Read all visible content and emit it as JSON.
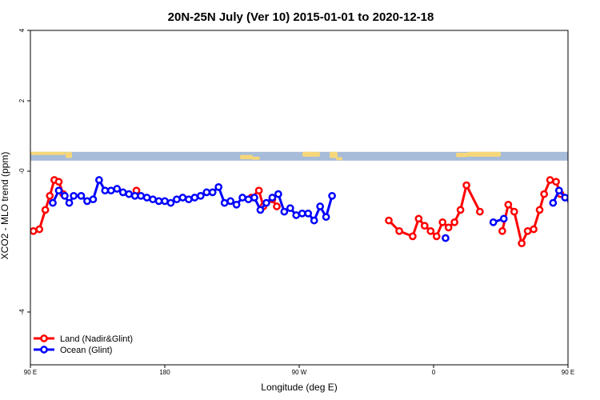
{
  "chart_data": {
    "type": "line",
    "title": "20N-25N July (Ver 10)   2015-01-01 to 2020-12-18",
    "xlabel": "Longitude (deg E)",
    "ylabel": "XCO2 - MLO trend (ppm)",
    "xlim": [
      90,
      450
    ],
    "ylim": [
      -5.5,
      4
    ],
    "xticks": [
      {
        "value": 90,
        "label": "90 E"
      },
      {
        "value": 180,
        "label": "180"
      },
      {
        "value": 270,
        "label": "90 W"
      },
      {
        "value": 360,
        "label": "0"
      },
      {
        "value": 450,
        "label": "90 E"
      },
      {
        "value": 540,
        "label": "180"
      }
    ],
    "yticks": [
      {
        "value": 4,
        "label": "4"
      },
      {
        "value": 2,
        "label": "2"
      },
      {
        "value": 0,
        "label": "-0"
      },
      {
        "value": -4,
        "label": "-4"
      }
    ],
    "legend_position": "bottom-left",
    "map_strip": {
      "ymin": 0.3,
      "ymax": 0.55,
      "ocean_color": "#a6bcd9",
      "land_color": "#f5d77a"
    },
    "series": [
      {
        "name": "Land (Nadir&Glint)",
        "color": "#ff0000",
        "points": [
          [
            92,
            -1.7
          ],
          [
            96,
            -1.65
          ],
          [
            100,
            -1.1
          ],
          [
            103,
            -0.7
          ],
          [
            106,
            -0.25
          ],
          [
            109,
            -0.3
          ],
          [
            112,
            -0.65
          ],
          [
            161,
            -0.55
          ],
          [
            238,
            -0.75
          ],
          [
            243,
            -0.55
          ],
          [
            246,
            -1.0
          ],
          [
            252,
            -0.8
          ],
          [
            255,
            -1.0
          ],
          [
            330,
            -1.4
          ],
          [
            337,
            -1.7
          ],
          [
            346,
            -1.85
          ],
          [
            350,
            -1.35
          ],
          [
            354,
            -1.55
          ],
          [
            358,
            -1.7
          ],
          [
            362,
            -1.85
          ],
          [
            366,
            -1.45
          ],
          [
            370,
            -1.6
          ],
          [
            374,
            -1.45
          ],
          [
            378,
            -1.1
          ],
          [
            382,
            -0.4
          ],
          [
            391,
            -1.15
          ],
          [
            406,
            -1.7
          ],
          [
            410,
            -0.95
          ],
          [
            414,
            -1.15
          ],
          [
            419,
            -2.05
          ],
          [
            423,
            -1.7
          ],
          [
            427,
            -1.65
          ],
          [
            431,
            -1.1
          ],
          [
            434,
            -0.65
          ],
          [
            438,
            -0.25
          ],
          [
            442,
            -0.3
          ],
          [
            445,
            -0.65
          ]
        ]
      },
      {
        "name": "Ocean (Glint)",
        "color": "#0000ff",
        "points": [
          [
            105,
            -0.9
          ],
          [
            109,
            -0.55
          ],
          [
            113,
            -0.7
          ],
          [
            116,
            -0.9
          ],
          [
            119,
            -0.7
          ],
          [
            124,
            -0.7
          ],
          [
            128,
            -0.85
          ],
          [
            132,
            -0.8
          ],
          [
            136,
            -0.25
          ],
          [
            140,
            -0.55
          ],
          [
            144,
            -0.55
          ],
          [
            148,
            -0.5
          ],
          [
            152,
            -0.6
          ],
          [
            156,
            -0.65
          ],
          [
            160,
            -0.7
          ],
          [
            164,
            -0.7
          ],
          [
            168,
            -0.75
          ],
          [
            172,
            -0.8
          ],
          [
            176,
            -0.85
          ],
          [
            180,
            -0.85
          ],
          [
            184,
            -0.9
          ],
          [
            188,
            -0.8
          ],
          [
            192,
            -0.75
          ],
          [
            196,
            -0.8
          ],
          [
            200,
            -0.75
          ],
          [
            204,
            -0.7
          ],
          [
            208,
            -0.6
          ],
          [
            212,
            -0.6
          ],
          [
            216,
            -0.45
          ],
          [
            220,
            -0.9
          ],
          [
            224,
            -0.85
          ],
          [
            228,
            -0.95
          ],
          [
            232,
            -0.75
          ],
          [
            236,
            -0.8
          ],
          [
            240,
            -0.75
          ],
          [
            244,
            -1.1
          ],
          [
            248,
            -0.9
          ],
          [
            252,
            -0.75
          ],
          [
            256,
            -0.65
          ],
          [
            260,
            -1.15
          ],
          [
            264,
            -1.05
          ],
          [
            268,
            -1.25
          ],
          [
            272,
            -1.2
          ],
          [
            276,
            -1.2
          ],
          [
            280,
            -1.4
          ],
          [
            284,
            -1.0
          ],
          [
            288,
            -1.3
          ],
          [
            292,
            -0.7
          ],
          [
            368,
            -1.9
          ],
          [
            400,
            -1.45
          ],
          [
            407,
            -1.35
          ],
          [
            440,
            -0.9
          ],
          [
            444,
            -0.55
          ],
          [
            448,
            -0.75
          ],
          [
            452,
            -0.85
          ],
          [
            456,
            -0.65
          ],
          [
            460,
            -0.65
          ],
          [
            464,
            -0.85
          ],
          [
            468,
            -0.8
          ],
          [
            472,
            -0.25
          ],
          [
            476,
            -0.55
          ],
          [
            480,
            -0.55
          ],
          [
            484,
            -0.5
          ],
          [
            488,
            -0.65
          ],
          [
            492,
            -0.7
          ],
          [
            496,
            -0.75
          ]
        ]
      }
    ]
  }
}
